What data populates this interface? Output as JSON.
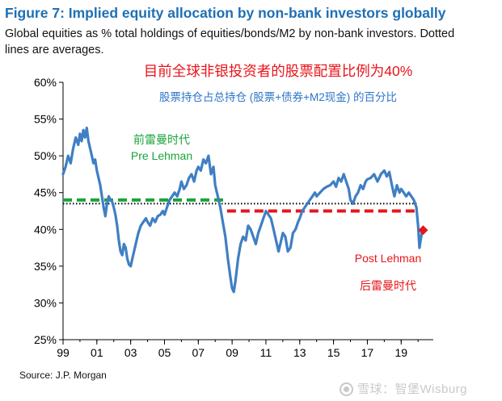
{
  "title": "Figure 7: Implied equity allocation by non-bank investors globally",
  "subtitle": "Global equities as % total holdings of equities/bonds/M2 by non-bank investors. Dotted lines are averages.",
  "source": "Source: J.P. Morgan",
  "watermark": "雪球：智堡Wisburg",
  "colors": {
    "title": "#1f6fb5",
    "series": "#3f7fc3",
    "pre_avg": "#1aa33b",
    "post_avg": "#e8141a",
    "annotation_blue": "#2e75c7"
  },
  "chart_data": {
    "type": "line",
    "ylim": [
      25,
      60
    ],
    "y_ticks": [
      25,
      30,
      35,
      40,
      45,
      50,
      55,
      60
    ],
    "y_tick_labels": [
      "25%",
      "30%",
      "35%",
      "40%",
      "45%",
      "50%",
      "55%",
      "60%"
    ],
    "xlim": [
      1999,
      2020.9
    ],
    "x_ticks": [
      1999,
      2001,
      2003,
      2005,
      2007,
      2009,
      2011,
      2013,
      2015,
      2017,
      2019
    ],
    "x_tick_labels": [
      "99",
      "01",
      "03",
      "05",
      "07",
      "09",
      "11",
      "13",
      "15",
      "17",
      "19"
    ],
    "series": [
      {
        "name": "Implied equity allocation",
        "x": [
          1999.0,
          1999.15,
          1999.3,
          1999.45,
          1999.6,
          1999.75,
          1999.9,
          2000.0,
          2000.1,
          2000.2,
          2000.3,
          2000.4,
          2000.5,
          2000.6,
          2000.7,
          2000.8,
          2000.9,
          2001.0,
          2001.1,
          2001.2,
          2001.3,
          2001.4,
          2001.5,
          2001.6,
          2001.7,
          2001.8,
          2001.9,
          2002.0,
          2002.1,
          2002.2,
          2002.3,
          2002.4,
          2002.5,
          2002.6,
          2002.7,
          2002.8,
          2002.9,
          2003.0,
          2003.1,
          2003.2,
          2003.3,
          2003.45,
          2003.6,
          2003.75,
          2003.9,
          2004.0,
          2004.15,
          2004.3,
          2004.45,
          2004.6,
          2004.75,
          2004.9,
          2005.0,
          2005.15,
          2005.3,
          2005.45,
          2005.6,
          2005.75,
          2005.9,
          2006.0,
          2006.15,
          2006.3,
          2006.45,
          2006.6,
          2006.75,
          2006.9,
          2007.0,
          2007.15,
          2007.3,
          2007.45,
          2007.6,
          2007.75,
          2007.9,
          2008.0,
          2008.15,
          2008.3,
          2008.45,
          2008.6,
          2008.75,
          2008.9,
          2009.0,
          2009.1,
          2009.2,
          2009.35,
          2009.5,
          2009.65,
          2009.8,
          2009.95,
          2010.1,
          2010.25,
          2010.4,
          2010.55,
          2010.7,
          2010.85,
          2011.0,
          2011.15,
          2011.3,
          2011.45,
          2011.6,
          2011.75,
          2011.9,
          2012.0,
          2012.15,
          2012.3,
          2012.45,
          2012.6,
          2012.75,
          2012.9,
          2013.0,
          2013.15,
          2013.3,
          2013.45,
          2013.6,
          2013.75,
          2013.9,
          2014.0,
          2014.2,
          2014.4,
          2014.6,
          2014.8,
          2015.0,
          2015.15,
          2015.3,
          2015.45,
          2015.6,
          2015.75,
          2015.9,
          2016.0,
          2016.15,
          2016.3,
          2016.45,
          2016.6,
          2016.75,
          2016.9,
          2017.0,
          2017.2,
          2017.4,
          2017.6,
          2017.8,
          2018.0,
          2018.15,
          2018.3,
          2018.45,
          2018.6,
          2018.75,
          2018.9,
          2019.0,
          2019.15,
          2019.3,
          2019.45,
          2019.6,
          2019.75,
          2019.9,
          2020.0,
          2020.08,
          2020.15,
          2020.25
        ],
        "values": [
          47.5,
          48.5,
          50.0,
          49.0,
          51.0,
          52.5,
          51.5,
          53.0,
          52.0,
          53.5,
          52.5,
          53.8,
          52.0,
          51.0,
          50.0,
          49.0,
          49.5,
          48.0,
          47.0,
          46.0,
          44.5,
          43.0,
          41.8,
          43.5,
          44.5,
          44.0,
          43.8,
          43.0,
          42.0,
          40.5,
          38.5,
          37.0,
          36.5,
          38.0,
          37.5,
          36.0,
          35.2,
          35.0,
          36.0,
          37.0,
          38.0,
          39.5,
          40.5,
          41.0,
          41.5,
          41.0,
          40.5,
          41.5,
          41.0,
          41.8,
          42.0,
          42.5,
          42.0,
          43.0,
          44.0,
          44.5,
          45.0,
          44.5,
          45.5,
          46.5,
          45.5,
          46.0,
          47.0,
          47.5,
          46.5,
          48.0,
          48.5,
          48.0,
          49.5,
          49.0,
          50.0,
          47.5,
          48.5,
          46.0,
          44.5,
          43.0,
          41.0,
          39.0,
          36.0,
          33.5,
          32.0,
          31.5,
          33.0,
          36.0,
          38.0,
          39.0,
          38.5,
          40.5,
          40.0,
          39.0,
          38.0,
          39.5,
          40.5,
          41.5,
          42.5,
          42.0,
          41.5,
          40.0,
          38.5,
          37.0,
          38.5,
          39.5,
          39.0,
          37.0,
          37.5,
          39.5,
          40.0,
          41.0,
          41.5,
          42.5,
          43.0,
          43.5,
          44.0,
          44.5,
          45.0,
          44.5,
          45.0,
          45.5,
          45.8,
          46.0,
          46.5,
          45.8,
          47.0,
          46.5,
          47.5,
          46.5,
          45.5,
          44.0,
          43.5,
          44.5,
          45.0,
          46.0,
          45.5,
          46.5,
          46.8,
          47.0,
          47.5,
          46.5,
          47.5,
          48.0,
          47.2,
          47.8,
          46.0,
          44.5,
          46.0,
          45.0,
          45.5,
          45.0,
          44.5,
          45.0,
          44.5,
          44.0,
          43.0,
          40.5,
          37.5,
          38.5,
          40.0
        ]
      }
    ],
    "averages": [
      {
        "name": "Pre Lehman average",
        "x_start": 1999.0,
        "x_end": 2008.7,
        "value": 44.0,
        "style": "dashed"
      },
      {
        "name": "Post Lehman average",
        "x_start": 2008.7,
        "x_end": 2020.0,
        "value": 42.5,
        "style": "dashed"
      },
      {
        "name": "Full period average",
        "x_start": 1999.0,
        "x_end": 2020.0,
        "value": 43.5,
        "style": "dotted"
      }
    ],
    "latest_point": {
      "x": 2020.3,
      "value": 39.9
    }
  },
  "annotations": {
    "headline_cn": "目前全球非银投资者的股票配置比例为40%",
    "definition_cn": "股票持仓占总持仓 (股票+债券+M2现金) 的百分比",
    "pre_cn": "前雷曼时代",
    "pre_en": "Pre Lehman",
    "post_en": "Post Lehman",
    "post_cn": "后雷曼时代"
  }
}
